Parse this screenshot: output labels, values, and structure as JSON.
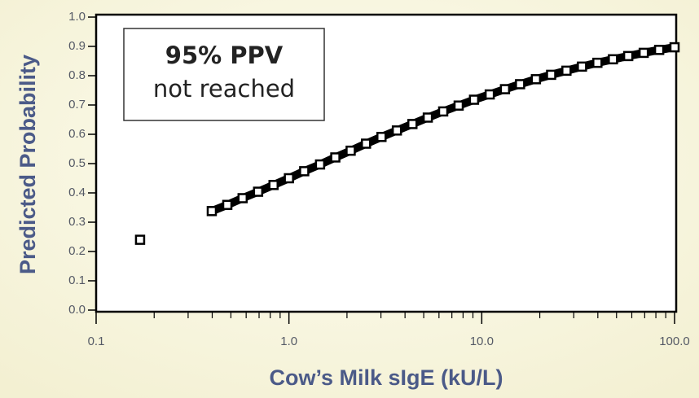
{
  "chart_data": {
    "type": "scatter",
    "xlabel": "Cow’s Milk sIgE (kU/L)",
    "ylabel": "Predicted Probability",
    "annotation": {
      "title": "95% PPV",
      "text": "not reached"
    },
    "log_x": true,
    "xlim": [
      0.1,
      100
    ],
    "ylim": [
      0,
      1
    ],
    "xticks": [
      0.1,
      {
        "value": 1,
        "label": "1.0"
      },
      {
        "value": 10,
        "label": "10.0"
      },
      {
        "value": 100,
        "label": "100.0"
      }
    ],
    "xminor_ticks": [
      0.2,
      0.3,
      0.4,
      0.5,
      0.6,
      0.7,
      0.8,
      0.9,
      2,
      3,
      4,
      5,
      6,
      7,
      8,
      9,
      20,
      30,
      40,
      50,
      60,
      70,
      80,
      90
    ],
    "yticks": [
      {
        "value": 0,
        "label": "0.0"
      },
      0.1,
      0.2,
      0.3,
      0.4,
      0.5,
      0.6,
      0.7,
      0.8,
      0.9,
      {
        "value": 1,
        "label": "1.0"
      }
    ],
    "color": "#000000",
    "x": [
      0.169,
      0.398,
      0.479,
      0.575,
      0.692,
      0.832,
      1.0,
      1.2,
      1.45,
      1.74,
      2.09,
      2.51,
      3.02,
      3.63,
      4.37,
      5.25,
      6.31,
      7.59,
      9.12,
      11.0,
      13.2,
      15.8,
      19.1,
      22.9,
      27.5,
      33.1,
      39.8,
      47.9,
      57.5,
      69.2,
      83.2,
      100
    ],
    "values": [
      0.24,
      0.338,
      0.359,
      0.382,
      0.404,
      0.427,
      0.45,
      0.474,
      0.497,
      0.521,
      0.544,
      0.568,
      0.591,
      0.613,
      0.635,
      0.657,
      0.678,
      0.698,
      0.718,
      0.736,
      0.754,
      0.771,
      0.788,
      0.803,
      0.817,
      0.831,
      0.844,
      0.856,
      0.867,
      0.878,
      0.888,
      0.897
    ]
  }
}
